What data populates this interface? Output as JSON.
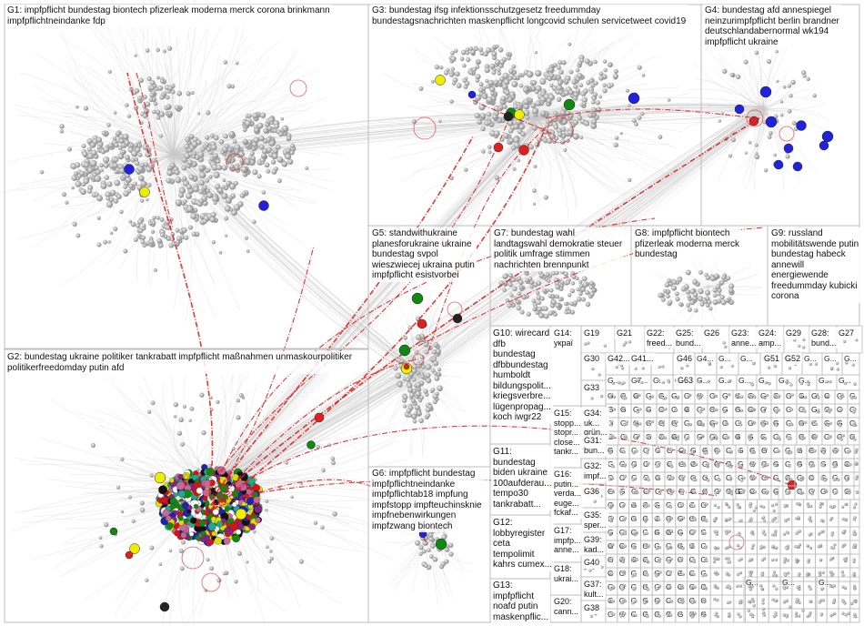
{
  "groups": [
    {
      "id": "G1",
      "label": "G1: impfpflicht bundestag biontech pfizerleak moderna merck corona brinkmann\nimpfpflichtneindanke fdp"
    },
    {
      "id": "G2",
      "label": "G2: bundestag ukraine politiker tankrabatt impfpflicht maßnahmen unmaskourpolitiker\npolitikerfreedomday putin afd"
    },
    {
      "id": "G3",
      "label": "G3: bundestag ifsg infektionsschutzgesetz freedummday\nbundestagsnachrichten maskenpflicht longcovid schulen servicetweet covid19"
    },
    {
      "id": "G4",
      "label": "G4: bundestag afd annespiegel\nneinzurimpfpflicht berlin brandner\ndeutschlandabernormal wk194\nimpfpflicht ukraine"
    },
    {
      "id": "G5",
      "label": "G5: standwithukraine\nplanesforukraine ukraine\nbundestag svpol\nwieszwiecej ukraina putin\nimpfpflicht esistvorbei"
    },
    {
      "id": "G6",
      "label": "G6: impfpflicht bundestag\nimpfpflichtneindanke\nimpfpflichtab18 impfung\nimpfstopp impfteuchinsknie\nimpfnebenwirkungen\nimpfzwang biontech"
    },
    {
      "id": "G7",
      "label": "G7: bundestag wahl\nlandtagswahl demokratie steuer\npolitik umfrage stimmen\nnachrichten brennpunkt"
    },
    {
      "id": "G8",
      "label": "G8: impfpflicht biontech\npfizerleak moderna merck\nbundestag"
    },
    {
      "id": "G9",
      "label": "G9: russland\nmobilitätswende putin\nbundestag habeck\nannewill\nenergiewende\nfreedummday kubicki\ncorona"
    },
    {
      "id": "G10",
      "label": "G10: wirecard\ndfb\nbundestag\ndfbbundestag\nhumboldt\nbildungspolit...\nkriegsverbre...\nlügenpropag...\nkoch iwgr22"
    },
    {
      "id": "G11",
      "label": "G11:\nbundestag\nbiden ukraine\n100aufderau...\ntempo30\ntankrabatt..."
    },
    {
      "id": "G12",
      "label": "G12:\nlobbyregister\nceta\ntempolimit\nkahrs cumex..."
    },
    {
      "id": "G13",
      "label": "G13:\nimpfpflicht\nnoafd putin\nmaskenpflic..."
    },
    {
      "id": "G14",
      "label": "G14:\nукраї"
    },
    {
      "id": "G15",
      "label": "G15:\nstopp...\nstopr...\nclose...\ntankr..."
    },
    {
      "id": "G16",
      "label": "G16:\nputin...\nverda...\neuge...\nfckaf..."
    },
    {
      "id": "G17",
      "label": "G17:\nimpfp...\nanne..."
    },
    {
      "id": "G18",
      "label": "G18:\nukrai..."
    },
    {
      "id": "G19",
      "label": "G19"
    },
    {
      "id": "G20",
      "label": "G20:\ncann..."
    },
    {
      "id": "G21",
      "label": "G21"
    },
    {
      "id": "G22",
      "label": "G22:\nfreed..."
    },
    {
      "id": "G23",
      "label": "G23:\nanne..."
    },
    {
      "id": "G24",
      "label": "G24:\namp..."
    },
    {
      "id": "G25",
      "label": "G25:\nbund..."
    },
    {
      "id": "G26",
      "label": "G26"
    },
    {
      "id": "G27",
      "label": "G27"
    },
    {
      "id": "G28",
      "label": "G28:\nbund..."
    },
    {
      "id": "G29",
      "label": "G29"
    },
    {
      "id": "G30",
      "label": "G30"
    },
    {
      "id": "G31",
      "label": "G31:\nbun..."
    },
    {
      "id": "G32",
      "label": "G32:\nimpf..."
    },
    {
      "id": "G33",
      "label": "G33"
    },
    {
      "id": "G34",
      "label": "G34:\nuk...\ngrün..."
    },
    {
      "id": "G35",
      "label": "G35:\nsper..."
    },
    {
      "id": "G36",
      "label": "G36"
    },
    {
      "id": "G37",
      "label": "G37:\nkult..."
    },
    {
      "id": "G38",
      "label": "G38"
    },
    {
      "id": "G39",
      "label": "G39:\nkad..."
    },
    {
      "id": "G40",
      "label": "G40"
    },
    {
      "id": "G41",
      "label": "G41..."
    },
    {
      "id": "G42",
      "label": "G42..."
    },
    {
      "id": "G46",
      "label": "G46"
    },
    {
      "id": "G51",
      "label": "G51"
    },
    {
      "id": "G52",
      "label": "G52"
    },
    {
      "id": "G63",
      "label": "G63"
    }
  ],
  "tiny_cells": {
    "short": "G...",
    "letter": "G",
    "g4": "G4...",
    "g5": "G5...",
    "g6": "G6...",
    "g7": "G7..."
  },
  "colors": {
    "border": "#bdbdbd",
    "node": "#b5b5b5",
    "edge": "#c8c8c8",
    "red": "#e02020",
    "blue": "#2222dd",
    "yellow": "#eeee00",
    "green": "#118811",
    "black": "#222222"
  }
}
